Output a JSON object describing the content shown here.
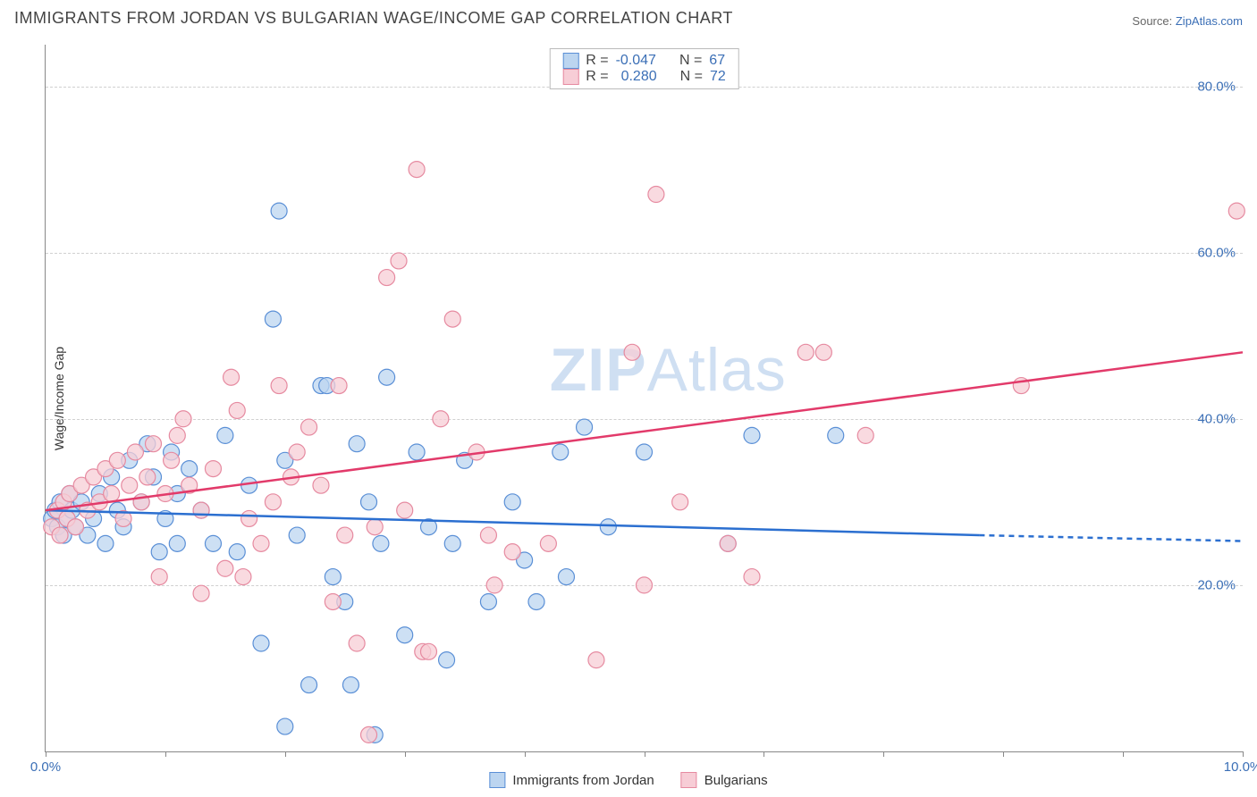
{
  "title": "IMMIGRANTS FROM JORDAN VS BULGARIAN WAGE/INCOME GAP CORRELATION CHART",
  "source_label": "Source:",
  "source_name": "ZipAtlas.com",
  "ylabel": "Wage/Income Gap",
  "watermark_bold": "ZIP",
  "watermark_thin": "Atlas",
  "chart": {
    "type": "scatter",
    "xlim": [
      0,
      10
    ],
    "ylim": [
      0,
      85
    ],
    "xtick_positions": [
      0,
      1,
      2,
      3,
      4,
      5,
      6,
      7,
      8,
      9,
      10
    ],
    "xtick_labels": {
      "0": "0.0%",
      "10": "10.0%"
    },
    "ytick_positions": [
      20,
      40,
      60,
      80
    ],
    "ytick_labels": [
      "20.0%",
      "40.0%",
      "60.0%",
      "80.0%"
    ],
    "grid_color": "#d0d0d0",
    "background_color": "#ffffff",
    "marker_radius": 9,
    "marker_stroke_width": 1.2,
    "line_width": 2.5
  },
  "series": [
    {
      "key": "jordan",
      "label": "Immigrants from Jordan",
      "fill": "#bcd5f0",
      "stroke": "#5a8fd6",
      "line_color": "#2b6fd0",
      "R": "-0.047",
      "N": "67",
      "trend": {
        "x1": 0,
        "y1": 29,
        "x2": 7.8,
        "y2": 26,
        "dash_from_x": 7.8,
        "x3": 10,
        "y3": 25.3
      },
      "points": [
        [
          0.05,
          28
        ],
        [
          0.08,
          29
        ],
        [
          0.1,
          27
        ],
        [
          0.12,
          30
        ],
        [
          0.15,
          26
        ],
        [
          0.18,
          28
        ],
        [
          0.2,
          31
        ],
        [
          0.22,
          29
        ],
        [
          0.25,
          27
        ],
        [
          0.3,
          30
        ],
        [
          0.35,
          26
        ],
        [
          0.4,
          28
        ],
        [
          0.45,
          31
        ],
        [
          0.5,
          25
        ],
        [
          0.55,
          33
        ],
        [
          0.6,
          29
        ],
        [
          0.65,
          27
        ],
        [
          0.7,
          35
        ],
        [
          0.8,
          30
        ],
        [
          0.85,
          37
        ],
        [
          0.9,
          33
        ],
        [
          1.0,
          28
        ],
        [
          1.05,
          36
        ],
        [
          1.1,
          31
        ],
        [
          1.2,
          34
        ],
        [
          1.3,
          29
        ],
        [
          1.4,
          25
        ],
        [
          1.5,
          38
        ],
        [
          1.6,
          24
        ],
        [
          1.7,
          32
        ],
        [
          1.8,
          13
        ],
        [
          1.9,
          52
        ],
        [
          1.95,
          65
        ],
        [
          2.0,
          35
        ],
        [
          2.1,
          26
        ],
        [
          2.2,
          8
        ],
        [
          2.3,
          44
        ],
        [
          2.35,
          44
        ],
        [
          2.4,
          21
        ],
        [
          2.5,
          18
        ],
        [
          2.55,
          8
        ],
        [
          2.6,
          37
        ],
        [
          2.7,
          30
        ],
        [
          2.75,
          2
        ],
        [
          2.8,
          25
        ],
        [
          2.85,
          45
        ],
        [
          3.0,
          14
        ],
        [
          3.1,
          36
        ],
        [
          3.2,
          27
        ],
        [
          3.35,
          11
        ],
        [
          3.4,
          25
        ],
        [
          3.5,
          35
        ],
        [
          3.7,
          18
        ],
        [
          3.9,
          30
        ],
        [
          4.0,
          23
        ],
        [
          4.1,
          18
        ],
        [
          4.3,
          36
        ],
        [
          4.35,
          21
        ],
        [
          4.5,
          39
        ],
        [
          4.7,
          27
        ],
        [
          5.0,
          36
        ],
        [
          5.7,
          25
        ],
        [
          5.9,
          38
        ],
        [
          6.6,
          38
        ],
        [
          2.0,
          3
        ],
        [
          1.1,
          25
        ],
        [
          0.95,
          24
        ]
      ]
    },
    {
      "key": "bulgarians",
      "label": "Bulgarians",
      "fill": "#f7cdd6",
      "stroke": "#e68aa0",
      "line_color": "#e23a6a",
      "R": "0.280",
      "N": "72",
      "trend": {
        "x1": 0,
        "y1": 29,
        "x2": 10,
        "y2": 48
      },
      "points": [
        [
          0.05,
          27
        ],
        [
          0.1,
          29
        ],
        [
          0.12,
          26
        ],
        [
          0.15,
          30
        ],
        [
          0.18,
          28
        ],
        [
          0.2,
          31
        ],
        [
          0.25,
          27
        ],
        [
          0.3,
          32
        ],
        [
          0.35,
          29
        ],
        [
          0.4,
          33
        ],
        [
          0.45,
          30
        ],
        [
          0.5,
          34
        ],
        [
          0.55,
          31
        ],
        [
          0.6,
          35
        ],
        [
          0.65,
          28
        ],
        [
          0.7,
          32
        ],
        [
          0.75,
          36
        ],
        [
          0.8,
          30
        ],
        [
          0.85,
          33
        ],
        [
          0.9,
          37
        ],
        [
          1.0,
          31
        ],
        [
          1.05,
          35
        ],
        [
          1.1,
          38
        ],
        [
          1.2,
          32
        ],
        [
          1.3,
          29
        ],
        [
          1.4,
          34
        ],
        [
          1.5,
          22
        ],
        [
          1.6,
          41
        ],
        [
          1.7,
          28
        ],
        [
          1.8,
          25
        ],
        [
          1.9,
          30
        ],
        [
          1.95,
          44
        ],
        [
          2.1,
          36
        ],
        [
          2.2,
          39
        ],
        [
          2.3,
          32
        ],
        [
          2.4,
          18
        ],
        [
          2.45,
          44
        ],
        [
          2.5,
          26
        ],
        [
          2.6,
          13
        ],
        [
          2.7,
          2
        ],
        [
          2.85,
          57
        ],
        [
          2.95,
          59
        ],
        [
          3.0,
          29
        ],
        [
          3.1,
          70
        ],
        [
          3.15,
          12
        ],
        [
          3.2,
          12
        ],
        [
          3.3,
          40
        ],
        [
          3.4,
          52
        ],
        [
          3.6,
          36
        ],
        [
          3.7,
          26
        ],
        [
          3.75,
          20
        ],
        [
          3.9,
          24
        ],
        [
          4.2,
          25
        ],
        [
          4.6,
          11
        ],
        [
          4.9,
          48
        ],
        [
          5.0,
          20
        ],
        [
          5.1,
          67
        ],
        [
          5.3,
          30
        ],
        [
          5.7,
          25
        ],
        [
          5.9,
          21
        ],
        [
          6.35,
          48
        ],
        [
          6.5,
          48
        ],
        [
          6.85,
          38
        ],
        [
          8.15,
          44
        ],
        [
          9.95,
          65
        ],
        [
          1.3,
          19
        ],
        [
          1.15,
          40
        ],
        [
          0.95,
          21
        ],
        [
          1.55,
          45
        ],
        [
          1.65,
          21
        ],
        [
          2.05,
          33
        ],
        [
          2.75,
          27
        ]
      ]
    }
  ],
  "legend_top": {
    "R_label": "R =",
    "N_label": "N ="
  }
}
